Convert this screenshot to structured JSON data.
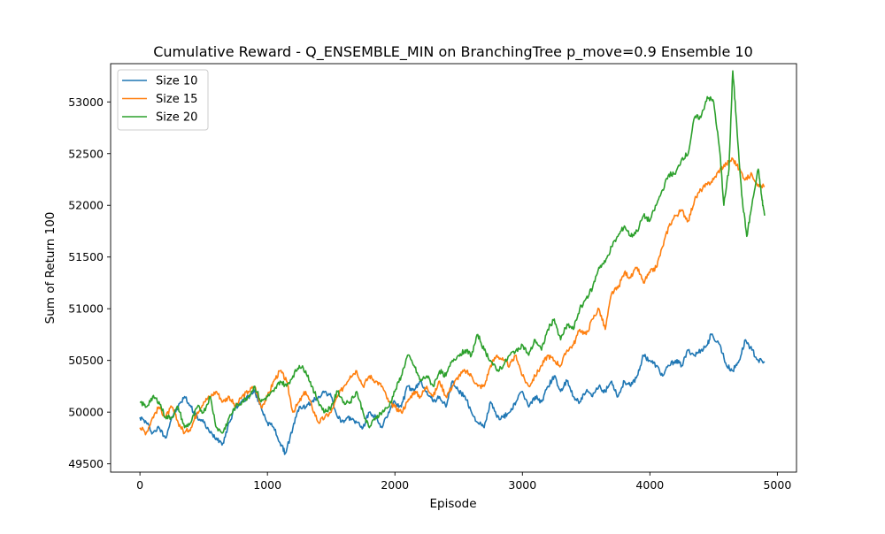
{
  "chart_data": {
    "type": "line",
    "title": "Cumulative Reward - Q_ENSEMBLE_MIN on BranchingTree p_move=0.9 Ensemble 10",
    "xlabel": "Episode",
    "ylabel": "Sum of Return 100",
    "xlim": [
      -230,
      5150
    ],
    "ylim": [
      49420,
      53370
    ],
    "xticks": [
      0,
      1000,
      2000,
      3000,
      4000,
      5000
    ],
    "yticks": [
      49500,
      50000,
      50500,
      51000,
      51500,
      52000,
      52500,
      53000
    ],
    "grid": false,
    "legend_position": "top-left",
    "series": [
      {
        "name": "Size 10",
        "color": "#1f77b4",
        "points": [
          [
            0,
            49950
          ],
          [
            50,
            49900
          ],
          [
            100,
            49800
          ],
          [
            150,
            49850
          ],
          [
            200,
            49750
          ],
          [
            250,
            49950
          ],
          [
            300,
            50050
          ],
          [
            350,
            50150
          ],
          [
            400,
            50050
          ],
          [
            450,
            49950
          ],
          [
            500,
            49900
          ],
          [
            550,
            49800
          ],
          [
            600,
            49750
          ],
          [
            650,
            49700
          ],
          [
            700,
            49900
          ],
          [
            750,
            50050
          ],
          [
            800,
            50100
          ],
          [
            850,
            50150
          ],
          [
            900,
            50200
          ],
          [
            950,
            50050
          ],
          [
            1000,
            49900
          ],
          [
            1050,
            49850
          ],
          [
            1100,
            49700
          ],
          [
            1140,
            49600
          ],
          [
            1200,
            49850
          ],
          [
            1250,
            50050
          ],
          [
            1300,
            50050
          ],
          [
            1350,
            50100
          ],
          [
            1400,
            50150
          ],
          [
            1450,
            50200
          ],
          [
            1500,
            50150
          ],
          [
            1550,
            49950
          ],
          [
            1600,
            49900
          ],
          [
            1650,
            49950
          ],
          [
            1700,
            49900
          ],
          [
            1750,
            49850
          ],
          [
            1800,
            50000
          ],
          [
            1850,
            49950
          ],
          [
            1900,
            49850
          ],
          [
            1950,
            50000
          ],
          [
            2000,
            50100
          ],
          [
            2050,
            50050
          ],
          [
            2100,
            50250
          ],
          [
            2150,
            50200
          ],
          [
            2200,
            50300
          ],
          [
            2250,
            50200
          ],
          [
            2300,
            50100
          ],
          [
            2350,
            50150
          ],
          [
            2400,
            50050
          ],
          [
            2450,
            50300
          ],
          [
            2500,
            50200
          ],
          [
            2550,
            50150
          ],
          [
            2600,
            50000
          ],
          [
            2650,
            49900
          ],
          [
            2700,
            49850
          ],
          [
            2750,
            50100
          ],
          [
            2800,
            49950
          ],
          [
            2850,
            49950
          ],
          [
            2900,
            50000
          ],
          [
            2950,
            50100
          ],
          [
            3000,
            50200
          ],
          [
            3050,
            50050
          ],
          [
            3100,
            50150
          ],
          [
            3150,
            50100
          ],
          [
            3200,
            50250
          ],
          [
            3250,
            50350
          ],
          [
            3300,
            50200
          ],
          [
            3350,
            50300
          ],
          [
            3400,
            50150
          ],
          [
            3450,
            50100
          ],
          [
            3500,
            50200
          ],
          [
            3550,
            50150
          ],
          [
            3600,
            50250
          ],
          [
            3650,
            50200
          ],
          [
            3700,
            50300
          ],
          [
            3750,
            50150
          ],
          [
            3800,
            50300
          ],
          [
            3850,
            50250
          ],
          [
            3900,
            50350
          ],
          [
            3950,
            50550
          ],
          [
            4000,
            50500
          ],
          [
            4050,
            50450
          ],
          [
            4100,
            50350
          ],
          [
            4150,
            50450
          ],
          [
            4200,
            50500
          ],
          [
            4250,
            50450
          ],
          [
            4300,
            50600
          ],
          [
            4350,
            50550
          ],
          [
            4400,
            50600
          ],
          [
            4450,
            50650
          ],
          [
            4480,
            50750
          ],
          [
            4550,
            50650
          ],
          [
            4600,
            50450
          ],
          [
            4650,
            50400
          ],
          [
            4700,
            50500
          ],
          [
            4750,
            50700
          ],
          [
            4800,
            50600
          ],
          [
            4850,
            50500
          ],
          [
            4900,
            50480
          ]
        ]
      },
      {
        "name": "Size 15",
        "color": "#ff7f0e",
        "points": [
          [
            0,
            49850
          ],
          [
            50,
            49800
          ],
          [
            100,
            49950
          ],
          [
            150,
            50050
          ],
          [
            200,
            49950
          ],
          [
            250,
            50050
          ],
          [
            300,
            49900
          ],
          [
            350,
            49800
          ],
          [
            400,
            49850
          ],
          [
            450,
            50000
          ],
          [
            500,
            50100
          ],
          [
            550,
            50150
          ],
          [
            600,
            50200
          ],
          [
            650,
            50100
          ],
          [
            700,
            50150
          ],
          [
            750,
            50050
          ],
          [
            800,
            50150
          ],
          [
            850,
            50200
          ],
          [
            900,
            50250
          ],
          [
            950,
            50050
          ],
          [
            1000,
            50150
          ],
          [
            1050,
            50300
          ],
          [
            1100,
            50400
          ],
          [
            1150,
            50300
          ],
          [
            1200,
            50000
          ],
          [
            1250,
            50100
          ],
          [
            1300,
            50200
          ],
          [
            1350,
            50050
          ],
          [
            1400,
            49900
          ],
          [
            1450,
            49950
          ],
          [
            1500,
            50000
          ],
          [
            1550,
            50150
          ],
          [
            1600,
            50250
          ],
          [
            1650,
            50350
          ],
          [
            1700,
            50400
          ],
          [
            1750,
            50250
          ],
          [
            1800,
            50350
          ],
          [
            1850,
            50300
          ],
          [
            1900,
            50250
          ],
          [
            1950,
            50100
          ],
          [
            2000,
            50050
          ],
          [
            2050,
            50000
          ],
          [
            2100,
            50100
          ],
          [
            2150,
            50200
          ],
          [
            2200,
            50150
          ],
          [
            2250,
            50250
          ],
          [
            2300,
            50150
          ],
          [
            2350,
            50300
          ],
          [
            2400,
            50150
          ],
          [
            2450,
            50250
          ],
          [
            2500,
            50350
          ],
          [
            2550,
            50400
          ],
          [
            2600,
            50350
          ],
          [
            2650,
            50250
          ],
          [
            2700,
            50250
          ],
          [
            2750,
            50450
          ],
          [
            2800,
            50550
          ],
          [
            2850,
            50500
          ],
          [
            2900,
            50450
          ],
          [
            2950,
            50550
          ],
          [
            3000,
            50350
          ],
          [
            3050,
            50250
          ],
          [
            3100,
            50350
          ],
          [
            3150,
            50450
          ],
          [
            3200,
            50550
          ],
          [
            3250,
            50500
          ],
          [
            3300,
            50450
          ],
          [
            3350,
            50600
          ],
          [
            3400,
            50650
          ],
          [
            3450,
            50800
          ],
          [
            3500,
            50750
          ],
          [
            3550,
            50900
          ],
          [
            3600,
            51000
          ],
          [
            3650,
            50800
          ],
          [
            3700,
            51150
          ],
          [
            3750,
            51200
          ],
          [
            3800,
            51350
          ],
          [
            3850,
            51300
          ],
          [
            3900,
            51400
          ],
          [
            3950,
            51250
          ],
          [
            4000,
            51350
          ],
          [
            4050,
            51400
          ],
          [
            4100,
            51600
          ],
          [
            4150,
            51800
          ],
          [
            4200,
            51900
          ],
          [
            4250,
            51950
          ],
          [
            4300,
            51850
          ],
          [
            4350,
            52050
          ],
          [
            4400,
            52150
          ],
          [
            4450,
            52200
          ],
          [
            4500,
            52250
          ],
          [
            4550,
            52350
          ],
          [
            4600,
            52400
          ],
          [
            4650,
            52450
          ],
          [
            4700,
            52350
          ],
          [
            4750,
            52250
          ],
          [
            4800,
            52300
          ],
          [
            4850,
            52200
          ],
          [
            4900,
            52180
          ]
        ]
      },
      {
        "name": "Size 20",
        "color": "#2ca02c",
        "points": [
          [
            0,
            50100
          ],
          [
            50,
            50050
          ],
          [
            100,
            50150
          ],
          [
            150,
            50100
          ],
          [
            200,
            49950
          ],
          [
            250,
            49950
          ],
          [
            300,
            50050
          ],
          [
            350,
            49850
          ],
          [
            400,
            49900
          ],
          [
            450,
            50050
          ],
          [
            500,
            50000
          ],
          [
            550,
            50150
          ],
          [
            600,
            49850
          ],
          [
            650,
            49800
          ],
          [
            700,
            49950
          ],
          [
            750,
            50050
          ],
          [
            800,
            50100
          ],
          [
            850,
            50150
          ],
          [
            900,
            50250
          ],
          [
            950,
            50100
          ],
          [
            1000,
            50150
          ],
          [
            1050,
            50200
          ],
          [
            1100,
            50300
          ],
          [
            1150,
            50250
          ],
          [
            1200,
            50350
          ],
          [
            1250,
            50450
          ],
          [
            1300,
            50400
          ],
          [
            1350,
            50250
          ],
          [
            1400,
            50100
          ],
          [
            1450,
            50000
          ],
          [
            1500,
            50050
          ],
          [
            1550,
            50200
          ],
          [
            1600,
            50100
          ],
          [
            1650,
            50100
          ],
          [
            1700,
            50200
          ],
          [
            1750,
            50000
          ],
          [
            1800,
            49850
          ],
          [
            1850,
            49950
          ],
          [
            1900,
            50000
          ],
          [
            1950,
            50050
          ],
          [
            2000,
            50200
          ],
          [
            2050,
            50350
          ],
          [
            2100,
            50550
          ],
          [
            2150,
            50450
          ],
          [
            2200,
            50300
          ],
          [
            2250,
            50350
          ],
          [
            2300,
            50250
          ],
          [
            2350,
            50400
          ],
          [
            2400,
            50350
          ],
          [
            2450,
            50500
          ],
          [
            2500,
            50550
          ],
          [
            2550,
            50600
          ],
          [
            2600,
            50550
          ],
          [
            2650,
            50750
          ],
          [
            2700,
            50600
          ],
          [
            2750,
            50500
          ],
          [
            2800,
            50400
          ],
          [
            2850,
            50450
          ],
          [
            2900,
            50550
          ],
          [
            2950,
            50600
          ],
          [
            3000,
            50650
          ],
          [
            3050,
            50550
          ],
          [
            3100,
            50700
          ],
          [
            3150,
            50600
          ],
          [
            3200,
            50800
          ],
          [
            3250,
            50900
          ],
          [
            3300,
            50700
          ],
          [
            3350,
            50850
          ],
          [
            3400,
            50800
          ],
          [
            3450,
            51000
          ],
          [
            3500,
            51100
          ],
          [
            3550,
            51200
          ],
          [
            3600,
            51400
          ],
          [
            3650,
            51450
          ],
          [
            3700,
            51600
          ],
          [
            3750,
            51700
          ],
          [
            3800,
            51800
          ],
          [
            3850,
            51700
          ],
          [
            3900,
            51750
          ],
          [
            3950,
            51900
          ],
          [
            4000,
            51850
          ],
          [
            4050,
            52000
          ],
          [
            4100,
            52150
          ],
          [
            4150,
            52300
          ],
          [
            4200,
            52300
          ],
          [
            4250,
            52450
          ],
          [
            4300,
            52500
          ],
          [
            4350,
            52850
          ],
          [
            4400,
            52850
          ],
          [
            4450,
            53050
          ],
          [
            4500,
            53000
          ],
          [
            4550,
            52500
          ],
          [
            4580,
            52000
          ],
          [
            4620,
            52350
          ],
          [
            4650,
            53300
          ],
          [
            4680,
            52800
          ],
          [
            4720,
            52100
          ],
          [
            4760,
            51700
          ],
          [
            4800,
            52000
          ],
          [
            4850,
            52350
          ],
          [
            4880,
            52050
          ],
          [
            4900,
            51900
          ]
        ]
      }
    ]
  }
}
